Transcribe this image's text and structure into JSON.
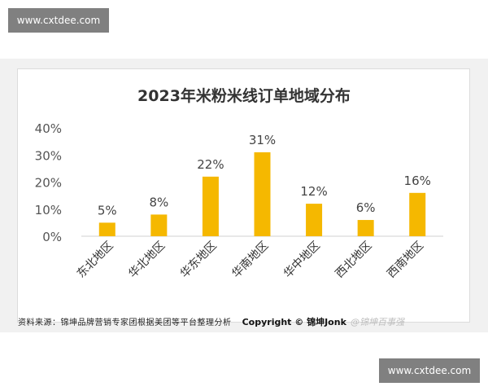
{
  "watermark": {
    "top": "www.cxtdee.com",
    "bottom": "www.cxtdee.com"
  },
  "chart_data": {
    "type": "bar",
    "title": "2023年米粉米线订单地域分布",
    "categories": [
      "东北地区",
      "华北地区",
      "华东地区",
      "华南地区",
      "华中地区",
      "西北地区",
      "西南地区"
    ],
    "values": [
      5,
      8,
      22,
      31,
      12,
      6,
      16
    ],
    "data_labels": [
      "5%",
      "8%",
      "22%",
      "31%",
      "12%",
      "6%",
      "16%"
    ],
    "y_ticks": [
      "0%",
      "10%",
      "20%",
      "30%",
      "40%"
    ],
    "ylim": [
      0,
      40
    ],
    "bar_color": "#F5B800",
    "grid": false
  },
  "footer": {
    "source": "资料来源：锦坤品牌营销专家团根据美团等平台整理分析",
    "copyright": "Copyright © 锦坤Jonk",
    "credit": "@锦坤百事强"
  }
}
